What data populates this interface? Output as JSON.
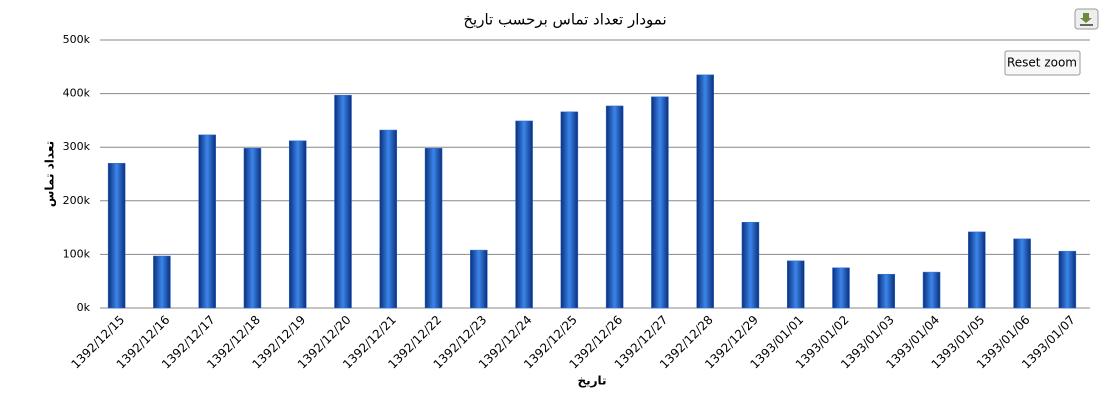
{
  "chart_data": {
    "type": "bar",
    "title": "نمودار تعداد تماس برحسب تاریخ",
    "x_label": "تاریخ",
    "y_label": "تعداد تماس",
    "categories": [
      "1392/12/15",
      "1392/12/16",
      "1392/12/17",
      "1392/12/18",
      "1392/12/19",
      "1392/12/20",
      "1392/12/21",
      "1392/12/22",
      "1392/12/23",
      "1392/12/24",
      "1392/12/25",
      "1392/12/26",
      "1392/12/27",
      "1392/12/28",
      "1392/12/29",
      "1393/01/01",
      "1393/01/02",
      "1393/01/03",
      "1393/01/04",
      "1393/01/05",
      "1393/01/06",
      "1393/01/07"
    ],
    "values": [
      270000,
      97000,
      323000,
      298000,
      312000,
      397000,
      332000,
      298000,
      108000,
      349000,
      366000,
      377000,
      394000,
      435000,
      160000,
      88000,
      75000,
      63000,
      67000,
      142000,
      129000,
      106000
    ],
    "color": "#2a6fd6",
    "ylim": [
      0,
      500000
    ],
    "yticks": [
      {
        "value": 0,
        "label": "0k"
      },
      {
        "value": 100000,
        "label": "100k"
      },
      {
        "value": 200000,
        "label": "200k"
      },
      {
        "value": 300000,
        "label": "300k"
      },
      {
        "value": 400000,
        "label": "400k"
      },
      {
        "value": 500000,
        "label": "500k"
      }
    ],
    "grid": true
  },
  "buttons": {
    "reset_zoom": "Reset zoom"
  }
}
